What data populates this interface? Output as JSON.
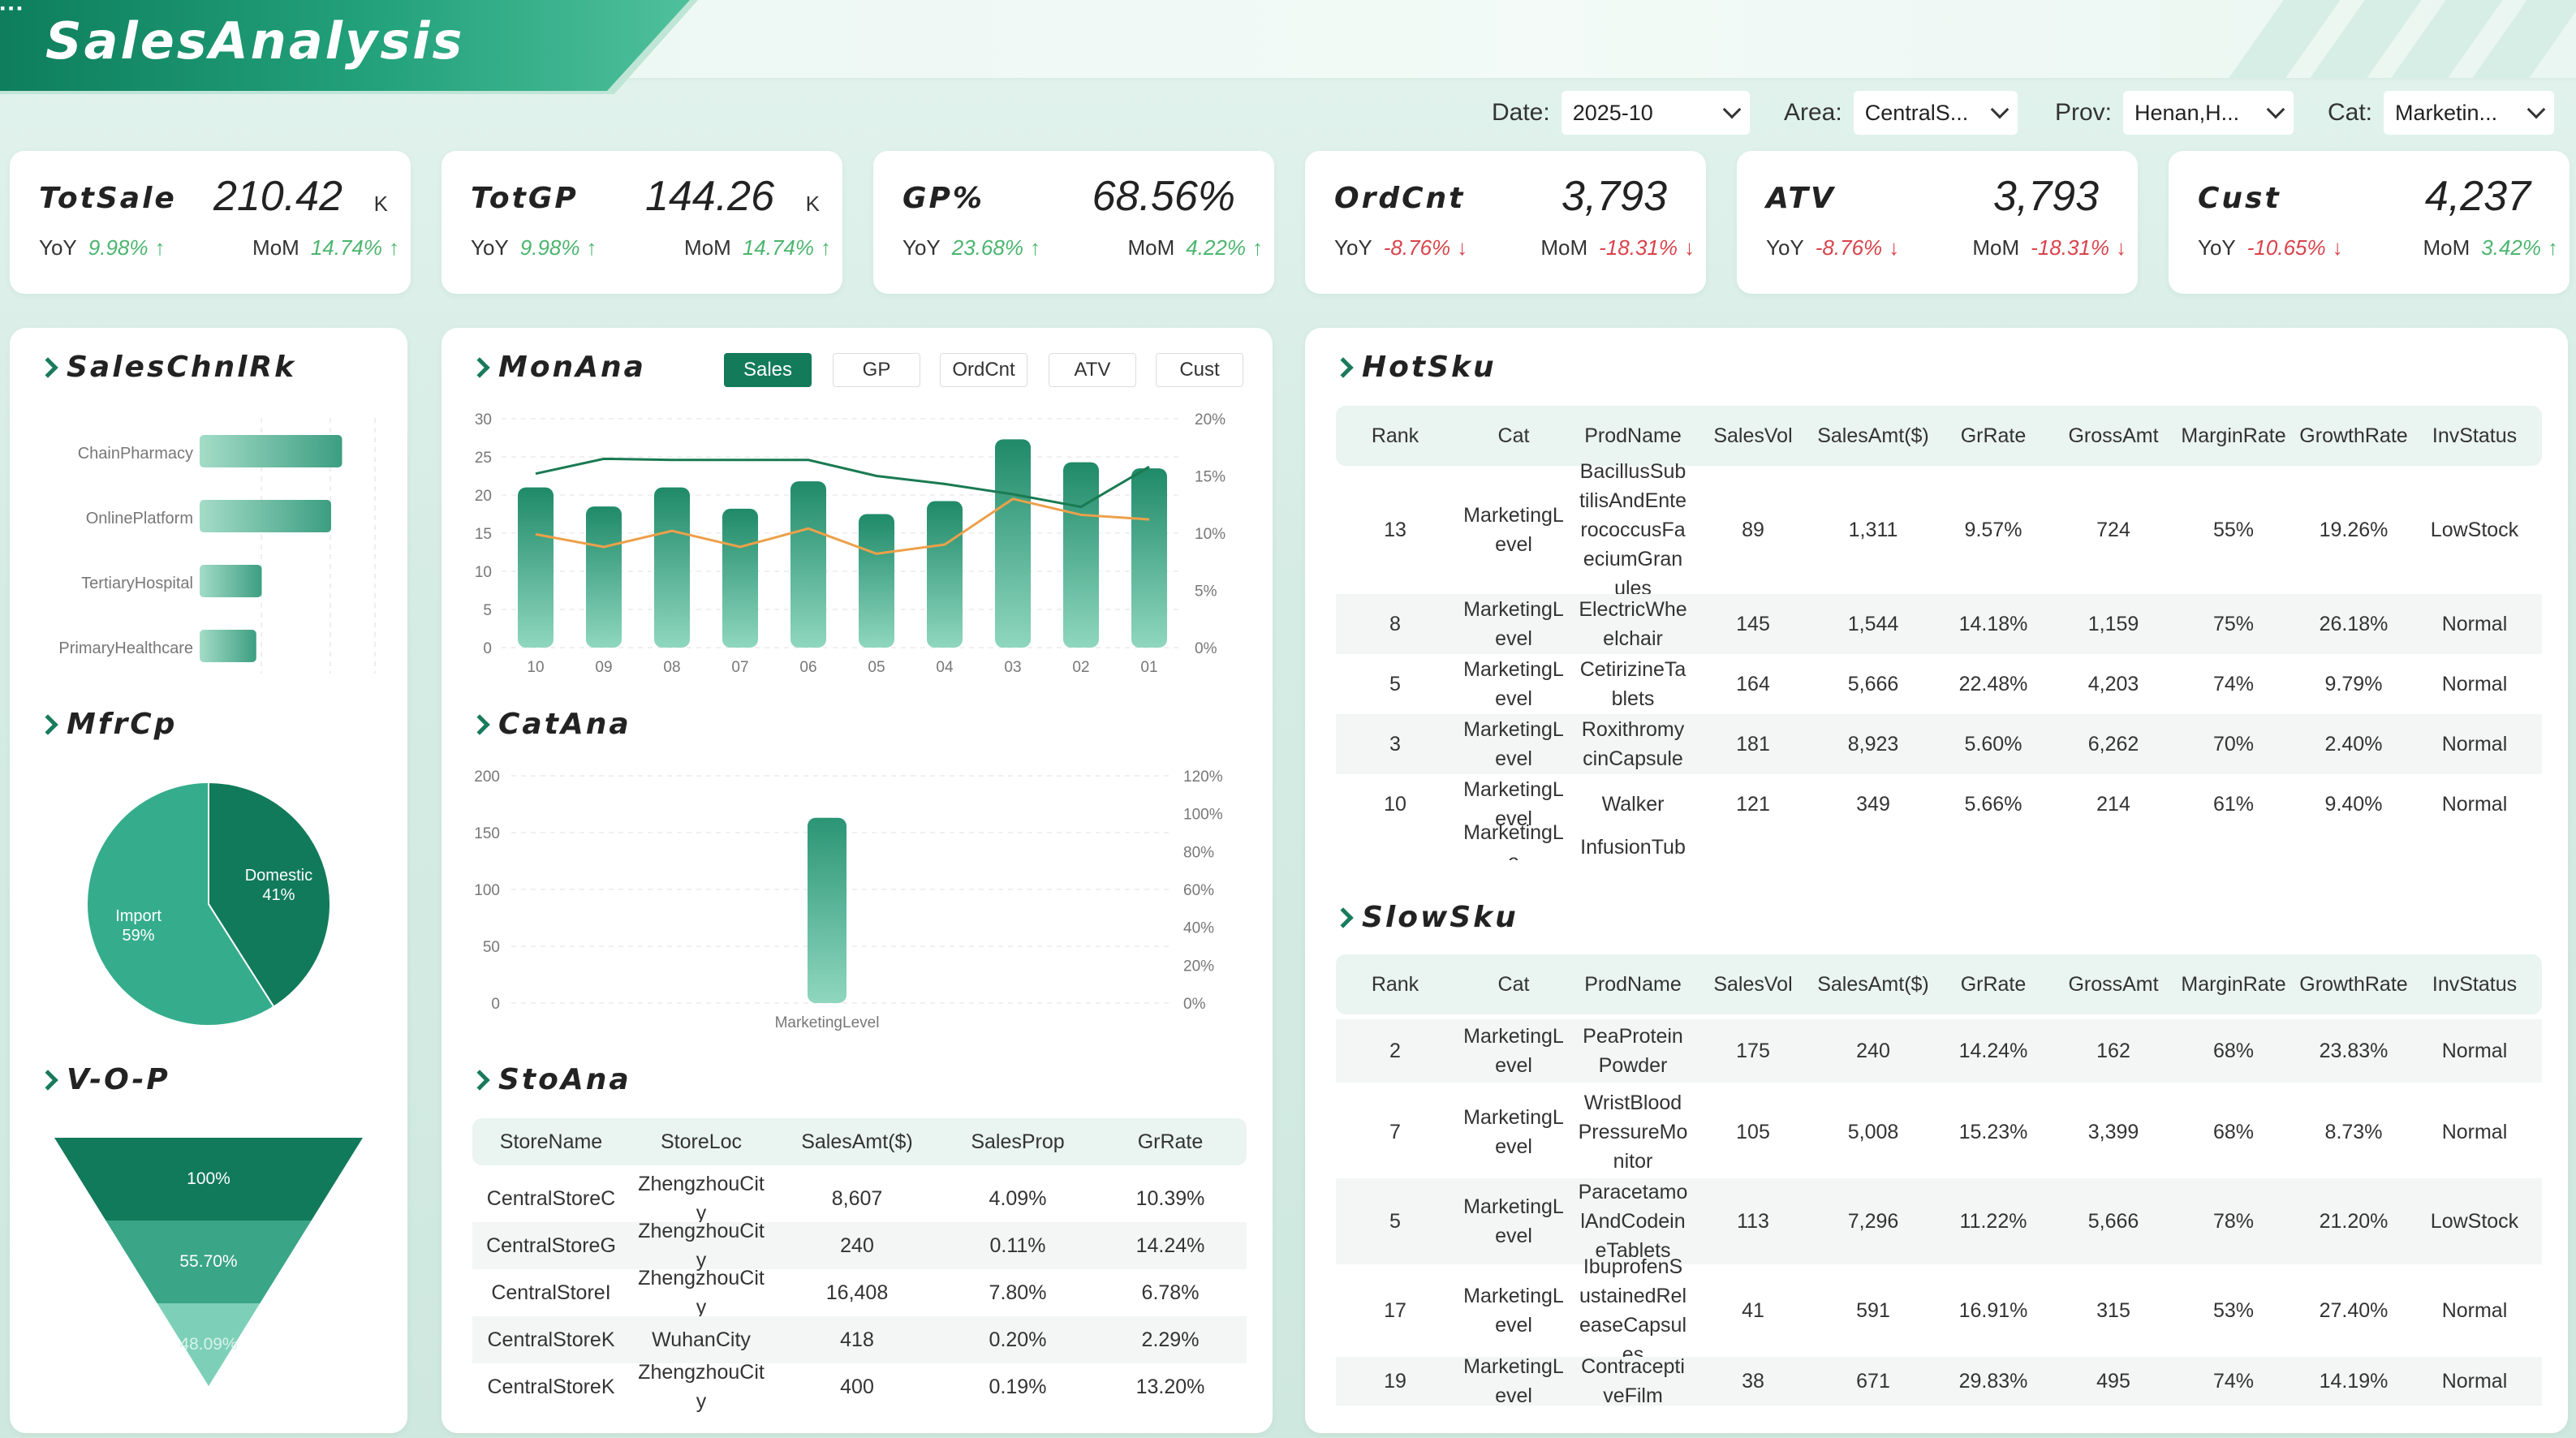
{
  "app": {
    "title": "SalesAnalysis"
  },
  "filters": [
    {
      "label": "Date:",
      "value": "2025-10"
    },
    {
      "label": "Area:",
      "value": "CentralS..."
    },
    {
      "label": "Prov:",
      "value": "Henan,H..."
    },
    {
      "label": "Cat:",
      "value": "Marketin..."
    }
  ],
  "kpis": [
    {
      "name": "TotSale",
      "value": "210.42",
      "unit": "K",
      "yoy_label": "YoY",
      "yoy": "9.98%",
      "yoy_dir": "up",
      "mom_label": "MoM",
      "mom": "14.74%",
      "mom_dir": "up"
    },
    {
      "name": "TotGP",
      "value": "144.26",
      "unit": "K",
      "yoy_label": "YoY",
      "yoy": "9.98%",
      "yoy_dir": "up",
      "mom_label": "MoM",
      "mom": "14.74%",
      "mom_dir": "up"
    },
    {
      "name": "GP%",
      "value": "68.56%",
      "unit": "",
      "yoy_label": "YoY",
      "yoy": "23.68%",
      "yoy_dir": "up",
      "mom_label": "MoM",
      "mom": "4.22%",
      "mom_dir": "up"
    },
    {
      "name": "OrdCnt",
      "value": "3,793",
      "unit": "",
      "yoy_label": "YoY",
      "yoy": "-8.76%",
      "yoy_dir": "down",
      "mom_label": "MoM",
      "mom": "-18.31%",
      "mom_dir": "down"
    },
    {
      "name": "ATV",
      "value": "3,793",
      "unit": "",
      "yoy_label": "YoY",
      "yoy": "-8.76%",
      "yoy_dir": "down",
      "mom_label": "MoM",
      "mom": "-18.31%",
      "mom_dir": "down"
    },
    {
      "name": "Cust",
      "value": "4,237",
      "unit": "",
      "yoy_label": "YoY",
      "yoy": "-10.65%",
      "yoy_dir": "down",
      "mom_label": "MoM",
      "mom": "3.42%",
      "mom_dir": "up"
    }
  ],
  "sections": {
    "sales_channel": "SalesChnlRk",
    "mfr": "MfrCp",
    "funnel": "V-O-P",
    "monthly": "MonAna",
    "category": "CatAna",
    "store": "StoAna",
    "hot_sku": "HotSku",
    "slow_sku": "SlowSku"
  },
  "month_tabs": [
    "Sales",
    "GP",
    "OrdCnt",
    "ATV",
    "Cust"
  ],
  "colors": {
    "primary": "#137a5a",
    "bar": "#3aa587",
    "line_dark": "#1a7a52",
    "line_orange": "#eda04a",
    "up": "#4cb56e",
    "down": "#d8434b"
  },
  "chart_data": [
    {
      "id": "sales_channel",
      "type": "bar",
      "orientation": "horizontal",
      "categories": [
        "ChainPharmacy",
        "OnlinePlatform",
        "TertiaryHospital",
        "PrimaryHealthcare"
      ],
      "values": [
        78,
        72,
        34,
        31
      ]
    },
    {
      "id": "mfr",
      "type": "pie",
      "slices": [
        {
          "label": "Domestic",
          "percent": "41%",
          "value": 41,
          "color": "#117a5a"
        },
        {
          "label": "Import",
          "percent": "59%",
          "value": 59,
          "color": "#35ad8d"
        }
      ]
    },
    {
      "id": "funnel",
      "type": "funnel",
      "stages": [
        {
          "label": "100%",
          "value": 100,
          "color": "#117a5a"
        },
        {
          "label": "55.70%",
          "value": 55.7,
          "color": "#3aa587"
        },
        {
          "label": "48.09%",
          "value": 48.09,
          "color": "#7dd0b7"
        }
      ]
    },
    {
      "id": "monthly",
      "type": "bar",
      "categories": [
        "10",
        "09",
        "08",
        "07",
        "06",
        "05",
        "04",
        "03",
        "02",
        "01"
      ],
      "y_ticks": [
        "0",
        "5",
        "10",
        "15",
        "20",
        "25",
        "30"
      ],
      "y2_ticks": [
        "0%",
        "5%",
        "10%",
        "15%",
        "20%"
      ],
      "ylim": [
        0,
        30
      ],
      "y2lim": [
        0,
        20
      ],
      "series": [
        {
          "type": "bar",
          "values": [
            21,
            18.5,
            21,
            18.2,
            21.8,
            17.5,
            19.2,
            27.3,
            24.3,
            23.5
          ]
        },
        {
          "type": "line",
          "color": "#1a7a52",
          "axis": "y2",
          "values": [
            15.2,
            16.5,
            16.4,
            16.4,
            16.4,
            15.0,
            14.3,
            13.4,
            12.3,
            15.8
          ]
        },
        {
          "type": "line",
          "color": "#eda04a",
          "axis": "y2",
          "values": [
            9.9,
            8.8,
            10.2,
            8.8,
            10.4,
            8.2,
            9.0,
            13.0,
            11.6,
            11.2
          ]
        }
      ]
    },
    {
      "id": "category",
      "type": "bar",
      "categories": [
        "MarketingLevel"
      ],
      "values": [
        163
      ],
      "y_ticks": [
        "0",
        "50",
        "100",
        "150",
        "200"
      ],
      "y2_ticks": [
        "0%",
        "20%",
        "40%",
        "60%",
        "80%",
        "100%",
        "120%"
      ],
      "ylim": [
        0,
        200
      ],
      "y2lim": [
        0,
        120
      ]
    }
  ],
  "store_table": {
    "columns": [
      "StoreName",
      "StoreLoc",
      "SalesAmt($)",
      "SalesProp",
      "GrRate"
    ],
    "rows": [
      [
        "CentralStoreC",
        "ZhengzhouCity",
        "8,607",
        "4.09%",
        "10.39%"
      ],
      [
        "CentralStoreG",
        "ZhengzhouCity",
        "240",
        "0.11%",
        "14.24%"
      ],
      [
        "CentralStoreI",
        "ZhengzhouCity",
        "16,408",
        "7.80%",
        "6.78%"
      ],
      [
        "CentralStoreK",
        "WuhanCity",
        "418",
        "0.20%",
        "2.29%"
      ],
      [
        "CentralStoreK",
        "ZhengzhouCity",
        "400",
        "0.19%",
        "13.20%"
      ]
    ]
  },
  "hot_table": {
    "columns": [
      "Rank",
      "Cat",
      "ProdName",
      "SalesVol",
      "SalesAmt($)",
      "GrRate",
      "GrossAmt",
      "MarginRate",
      "GrowthRate",
      "InvStatus"
    ],
    "rows": [
      [
        "13",
        "MarketingLevel",
        "BacillusSubtilisAndEnterococcusFaeciumGranules",
        "89",
        "1,311",
        "9.57%",
        "724",
        "55%",
        "19.26%",
        "LowStock"
      ],
      [
        "8",
        "MarketingLevel",
        "ElectricWheelchair",
        "145",
        "1,544",
        "14.18%",
        "1,159",
        "75%",
        "26.18%",
        "Normal"
      ],
      [
        "5",
        "MarketingLevel",
        "CetirizineTablets",
        "164",
        "5,666",
        "22.48%",
        "4,203",
        "74%",
        "9.79%",
        "Normal"
      ],
      [
        "3",
        "MarketingLevel",
        "RoxithromycinCapsule",
        "181",
        "8,923",
        "5.60%",
        "6,262",
        "70%",
        "2.40%",
        "Normal"
      ],
      [
        "10",
        "MarketingLevel",
        "Walker",
        "121",
        "349",
        "5.66%",
        "214",
        "61%",
        "9.40%",
        "Normal"
      ],
      [
        "",
        "MarketingLe",
        "InfusionTub",
        "",
        "",
        "",
        "",
        "",
        "",
        ""
      ]
    ]
  },
  "slow_table": {
    "columns": [
      "Rank",
      "Cat",
      "ProdName",
      "SalesVol",
      "SalesAmt($)",
      "GrRate",
      "GrossAmt",
      "MarginRate",
      "GrowthRate",
      "InvStatus"
    ],
    "rows": [
      [
        "2",
        "MarketingLevel",
        "PeaProteinPowder",
        "175",
        "240",
        "14.24%",
        "162",
        "68%",
        "23.83%",
        "Normal"
      ],
      [
        "7",
        "MarketingLevel",
        "WristBloodPressureMonitor",
        "105",
        "5,008",
        "15.23%",
        "3,399",
        "68%",
        "8.73%",
        "Normal"
      ],
      [
        "5",
        "MarketingLevel",
        "ParacetamolAndCodeineTablets",
        "113",
        "7,296",
        "11.22%",
        "5,666",
        "78%",
        "21.20%",
        "LowStock"
      ],
      [
        "17",
        "MarketingLevel",
        "IbuprofenSustainedReleaseCapsules",
        "41",
        "591",
        "16.91%",
        "315",
        "53%",
        "27.40%",
        "Normal"
      ],
      [
        "19",
        "MarketingLevel",
        "ContraceptiveFilm",
        "38",
        "671",
        "29.83%",
        "495",
        "74%",
        "14.19%",
        "Normal"
      ]
    ]
  }
}
